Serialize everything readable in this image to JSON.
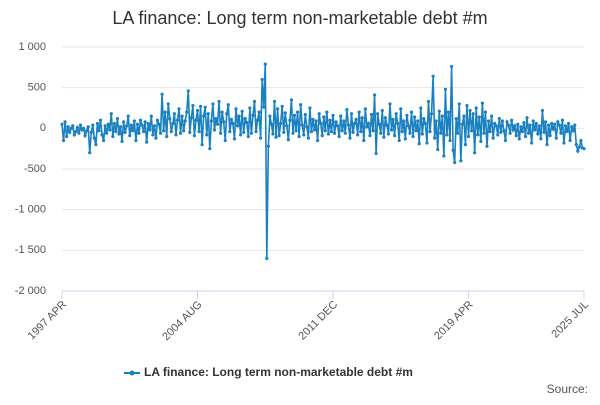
{
  "chart_data": {
    "type": "line",
    "title": "LA finance: Long term non-marketable debt #m",
    "source": "Source:",
    "categories": [
      "1997 APR",
      null,
      null,
      null,
      null,
      null,
      null,
      null,
      null,
      null,
      null,
      null,
      null,
      null,
      null,
      null,
      null,
      null,
      null,
      null,
      null,
      null,
      null,
      null,
      null,
      null,
      null,
      null,
      null,
      null,
      null,
      null,
      null,
      null,
      null,
      null,
      null,
      null,
      null,
      null,
      null,
      null,
      null,
      null,
      null,
      null,
      null,
      null,
      null,
      null,
      null,
      null,
      null,
      null,
      null,
      null,
      null,
      null,
      null,
      null,
      null,
      null,
      null,
      null,
      null,
      null,
      null,
      null,
      null,
      null,
      null,
      null,
      null,
      null,
      null,
      null,
      null,
      null,
      null,
      null,
      null,
      null,
      null,
      null,
      null,
      null,
      null,
      null,
      "2004 AUG",
      null,
      null,
      null,
      null,
      null,
      null,
      null,
      null,
      null,
      null,
      null,
      null,
      null,
      null,
      null,
      null,
      null,
      null,
      null,
      null,
      null,
      null,
      null,
      null,
      null,
      null,
      null,
      null,
      null,
      null,
      null,
      null,
      null,
      null,
      null,
      null,
      null,
      null,
      null,
      null,
      null,
      null,
      null,
      null,
      null,
      null,
      null,
      null,
      null,
      null,
      null,
      null,
      null,
      null,
      null,
      null,
      null,
      null,
      null,
      null,
      null,
      null,
      null,
      null,
      null,
      null,
      null,
      null,
      null,
      null,
      null,
      null,
      null,
      null,
      null,
      null,
      null,
      null,
      null,
      null,
      null,
      null,
      null,
      null,
      null,
      null,
      null,
      "2011 DEC",
      null,
      null,
      null,
      null,
      null,
      null,
      null,
      null,
      null,
      null,
      null,
      null,
      null,
      null,
      null,
      null,
      null,
      null,
      null,
      null,
      null,
      null,
      null,
      null,
      null,
      null,
      null,
      null,
      null,
      null,
      null,
      null,
      null,
      null,
      null,
      null,
      null,
      null,
      null,
      null,
      null,
      null,
      null,
      null,
      null,
      null,
      null,
      null,
      null,
      null,
      null,
      null,
      null,
      null,
      null,
      null,
      null,
      null,
      null,
      null,
      null,
      null,
      null,
      null,
      null,
      null,
      null,
      null,
      null,
      null,
      null,
      null,
      null,
      null,
      null,
      null,
      null,
      null,
      null,
      null,
      null,
      null,
      null,
      null,
      null,
      null,
      null,
      "2019 APR",
      null,
      null,
      null,
      null,
      null,
      null,
      null,
      null,
      null,
      null,
      null,
      null,
      null,
      null,
      null,
      null,
      null,
      null,
      null,
      null,
      null,
      null,
      null,
      null,
      null,
      null,
      null,
      null,
      null,
      null,
      null,
      null,
      null,
      null,
      null,
      null,
      null,
      null,
      null,
      null,
      null,
      null,
      null,
      null,
      null,
      null,
      null,
      null,
      null,
      null,
      null,
      null,
      null,
      null,
      null,
      null,
      null,
      null,
      null,
      null,
      null,
      null,
      null,
      null,
      null,
      null,
      null,
      null,
      null,
      null,
      null,
      null,
      null,
      null,
      "2025 JUL"
    ],
    "series": [
      {
        "name": "LA finance: Long term non-marketable debt #m",
        "color": "#1a80c0",
        "values": [
          50,
          -150,
          80,
          -100,
          20,
          -50,
          0,
          30,
          -80,
          -40,
          10,
          -60,
          40,
          -20,
          0,
          -90,
          -30,
          20,
          -300,
          -50,
          40,
          -120,
          -200,
          60,
          -30,
          100,
          -80,
          -150,
          30,
          -60,
          50,
          -20,
          180,
          -100,
          60,
          -40,
          120,
          -70,
          20,
          -160,
          80,
          -50,
          30,
          150,
          -90,
          40,
          -30,
          90,
          -150,
          50,
          -60,
          100,
          40,
          -40,
          80,
          -170,
          60,
          -20,
          150,
          -80,
          30,
          -120,
          100,
          50,
          -60,
          420,
          -30,
          200,
          -100,
          300,
          120,
          -40,
          60,
          180,
          -80,
          100,
          240,
          -60,
          150,
          -30,
          90,
          200,
          460,
          -50,
          130,
          280,
          -90,
          100,
          220,
          -40,
          270,
          -200,
          150,
          260,
          -80,
          180,
          -250,
          90,
          300,
          -20,
          120,
          50,
          330,
          -60,
          200,
          80,
          -150,
          180,
          290,
          -40,
          110,
          60,
          -130,
          240,
          30,
          150,
          -80,
          210,
          -50,
          120,
          70,
          -100,
          250,
          -60,
          160,
          330,
          -40,
          100,
          200,
          -120,
          600,
          260,
          790,
          -1600,
          -220,
          150,
          50,
          -70,
          330,
          -110,
          240,
          -90,
          60,
          270,
          -50,
          190,
          30,
          -140,
          100,
          350,
          -60,
          160,
          -30,
          200,
          -100,
          290,
          40,
          -80,
          170,
          20,
          -120,
          250,
          -40,
          110,
          -20,
          90,
          -150,
          180,
          60,
          -90,
          140,
          -30,
          200,
          -70,
          100,
          -40,
          160,
          -60,
          80,
          30,
          -100,
          150,
          -30,
          90,
          -60,
          230,
          40,
          -120,
          180,
          -50,
          60,
          110,
          -80,
          200,
          -40,
          130,
          -150,
          240,
          20,
          60,
          -90,
          170,
          -30,
          410,
          -310,
          180,
          50,
          -60,
          220,
          -110,
          130,
          40,
          -70,
          300,
          -20,
          110,
          -90,
          180,
          60,
          -150,
          240,
          -40,
          90,
          -130,
          160,
          30,
          -60,
          200,
          -100,
          140,
          -30,
          90,
          -190,
          250,
          -70,
          120,
          60,
          -180,
          330,
          -40,
          180,
          640,
          -120,
          90,
          -260,
          210,
          -60,
          150,
          -340,
          480,
          -80,
          200,
          -150,
          760,
          -270,
          -420,
          120,
          -60,
          300,
          -400,
          50,
          150,
          -200,
          280,
          -100,
          220,
          -30,
          180,
          -300,
          250,
          -80,
          140,
          -160,
          310,
          -60,
          200,
          -220,
          90,
          -40,
          150,
          -120,
          60,
          30,
          -80,
          120,
          -50,
          90,
          -30,
          -150,
          80,
          40,
          -60,
          100,
          -20,
          30,
          -90,
          50,
          -130,
          20,
          -40,
          70,
          -100,
          130,
          -60,
          40,
          -180,
          90,
          -20,
          60,
          -70,
          30,
          -130,
          220,
          -50,
          80,
          -200,
          40,
          -90,
          60,
          -10,
          50,
          -120,
          80,
          40,
          -60,
          100,
          -180,
          30,
          -40,
          60,
          -150,
          20,
          -30,
          40,
          -200,
          -280,
          -230,
          -150,
          -240,
          -250
        ]
      }
    ],
    "ylim": [
      -2000,
      1000
    ],
    "yticks": [
      {
        "value": -2000,
        "label": "-2 000"
      },
      {
        "value": -1500,
        "label": "-1 500"
      },
      {
        "value": -1000,
        "label": "-1 000"
      },
      -500,
      0,
      500,
      {
        "value": 1000,
        "label": "1 000"
      }
    ],
    "grid": true,
    "legend": "bottom"
  }
}
